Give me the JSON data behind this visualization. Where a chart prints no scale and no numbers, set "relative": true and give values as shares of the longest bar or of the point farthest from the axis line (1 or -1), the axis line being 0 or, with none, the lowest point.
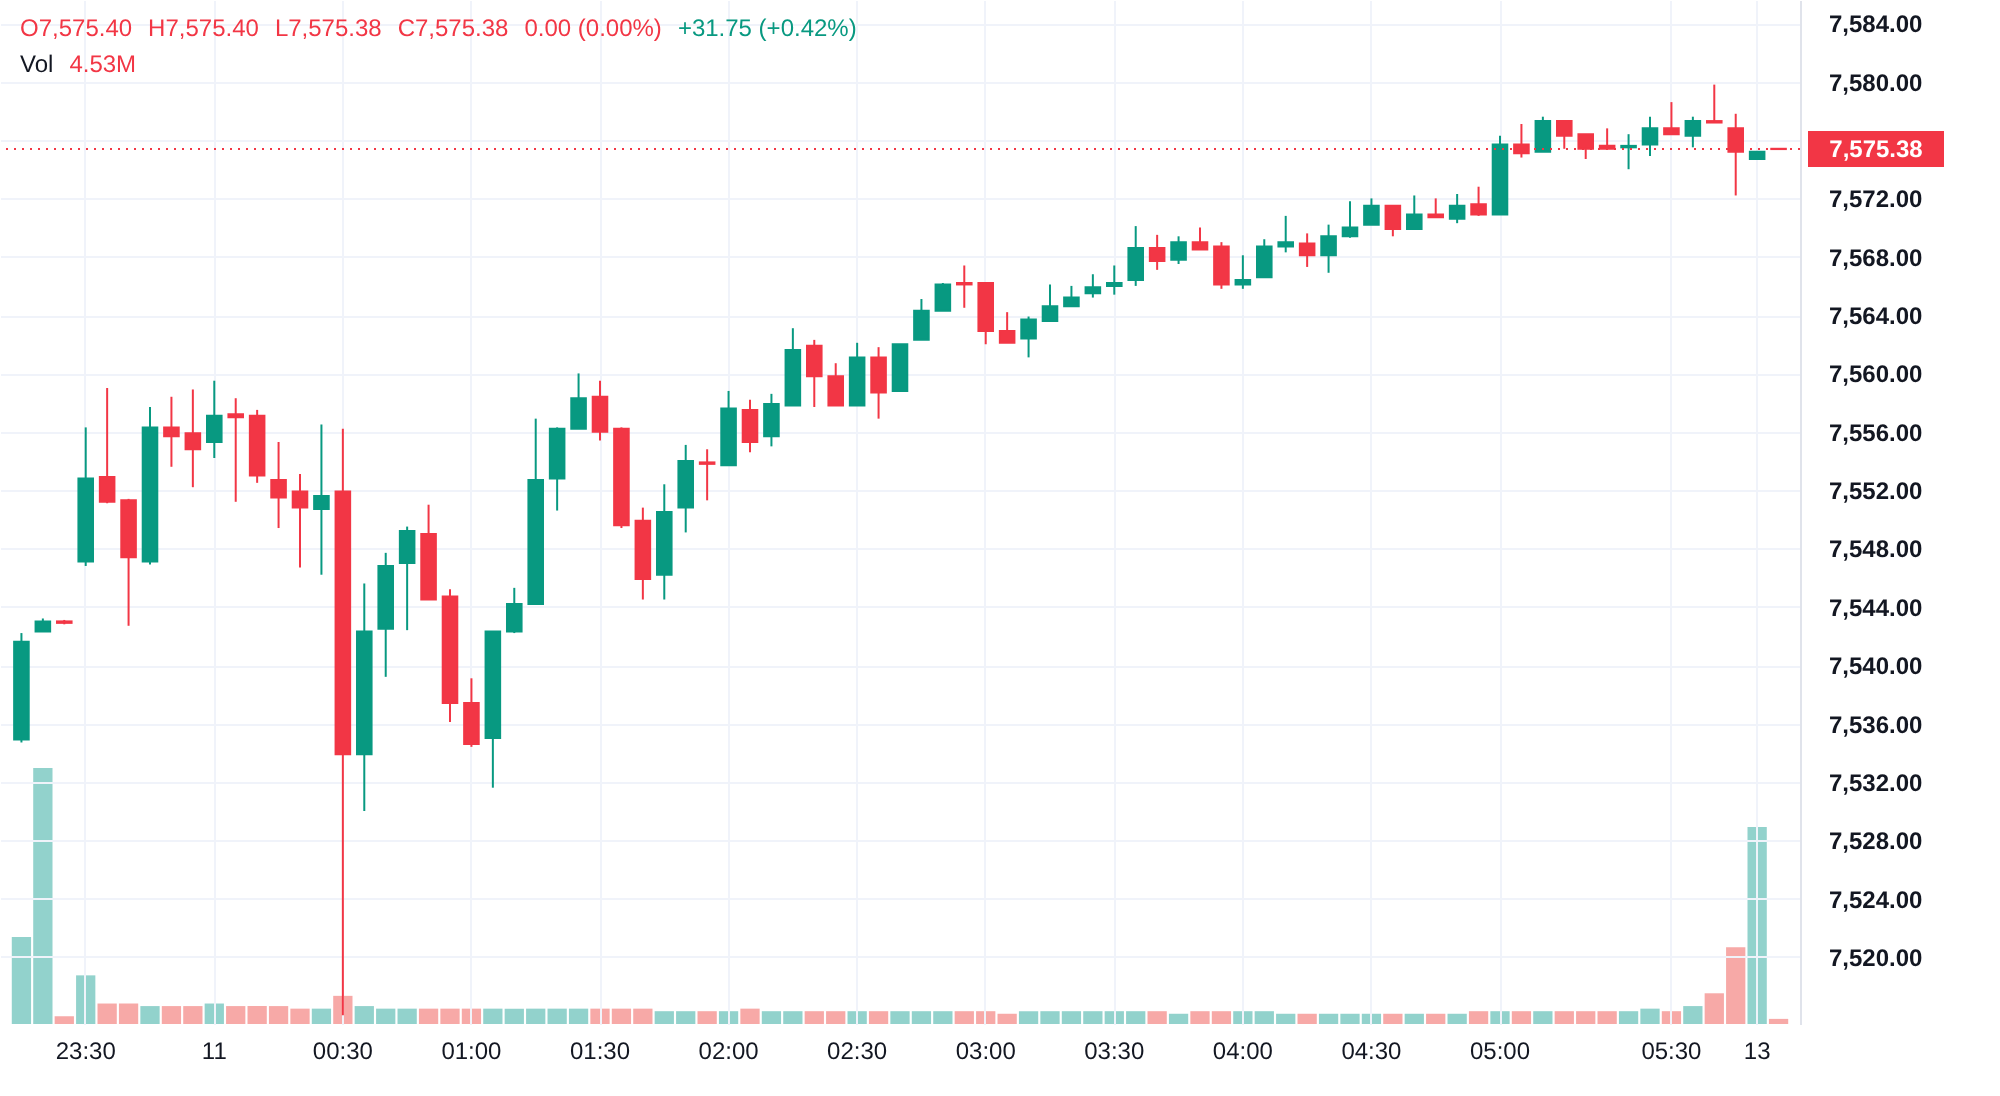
{
  "chart_data": [
    {
      "type": "candlestick",
      "categories": [
        null,
        null,
        null,
        "23:30",
        null,
        null,
        null,
        null,
        null,
        "11",
        null,
        null,
        null,
        null,
        null,
        "00:30",
        null,
        null,
        null,
        null,
        null,
        "01:00",
        null,
        null,
        null,
        null,
        null,
        "01:30",
        null,
        null,
        null,
        null,
        null,
        "02:00",
        null,
        null,
        null,
        null,
        null,
        "02:30",
        null,
        null,
        null,
        null,
        null,
        "03:00",
        null,
        null,
        null,
        null,
        null,
        "03:30",
        null,
        null,
        null,
        null,
        null,
        "04:00",
        null,
        null,
        null,
        null,
        null,
        "04:30",
        null,
        null,
        null,
        null,
        null,
        "05:00",
        null,
        null,
        null,
        null,
        null,
        null,
        null,
        "05:30",
        null,
        null,
        null,
        "13",
        null
      ],
      "series": [
        {
          "ohlc": [
            [
              7534.9,
              7542.2,
              7534.7,
              7541.6
            ],
            [
              7542.3,
              7543.2,
              7542.3,
              7543.0
            ],
            [
              7543.0,
              7543.1,
              7542.8,
              7542.9
            ],
            [
              7547.1,
              7556.3,
              7546.8,
              7552.8
            ],
            [
              7552.9,
              7559.0,
              7551.1,
              7551.2
            ],
            [
              7551.3,
              7551.4,
              7542.7,
              7547.4
            ],
            [
              7547.1,
              7557.7,
              7546.9,
              7556.3
            ],
            [
              7556.3,
              7558.4,
              7553.6,
              7555.7
            ],
            [
              7555.9,
              7558.9,
              7552.2,
              7554.8
            ],
            [
              7555.3,
              7559.5,
              7554.2,
              7557.1
            ],
            [
              7557.2,
              7558.3,
              7551.2,
              7557.0
            ],
            [
              7557.1,
              7557.5,
              7552.5,
              7553.0
            ],
            [
              7552.7,
              7555.3,
              7549.4,
              7551.5
            ],
            [
              7551.9,
              7553.1,
              7546.7,
              7550.8
            ],
            [
              7550.7,
              7556.5,
              7546.2,
              7551.6
            ],
            [
              7551.9,
              7556.2,
              7516.0,
              7533.9
            ],
            [
              7533.9,
              7545.6,
              7530.0,
              7542.3
            ],
            [
              7542.5,
              7547.7,
              7539.2,
              7546.8
            ],
            [
              7547.0,
              7549.5,
              7542.4,
              7549.2
            ],
            [
              7549.0,
              7551.0,
              7544.5,
              7544.5
            ],
            [
              7544.7,
              7545.2,
              7536.1,
              7537.4
            ],
            [
              7537.4,
              7539.1,
              7534.4,
              7534.6
            ],
            [
              7535.0,
              7542.3,
              7531.6,
              7542.3
            ],
            [
              7542.3,
              7545.3,
              7542.2,
              7544.2
            ],
            [
              7544.2,
              7556.9,
              7544.2,
              7552.7
            ],
            [
              7552.8,
              7556.3,
              7550.6,
              7556.2
            ],
            [
              7556.2,
              7560.0,
              7556.2,
              7558.3
            ],
            [
              7558.4,
              7559.5,
              7555.4,
              7556.0
            ],
            [
              7556.2,
              7556.3,
              7549.4,
              7549.6
            ],
            [
              7549.9,
              7550.8,
              7544.5,
              7545.9
            ],
            [
              7546.2,
              7552.4,
              7544.5,
              7550.5
            ],
            [
              7550.8,
              7555.1,
              7549.1,
              7554.0
            ],
            [
              7553.9,
              7554.8,
              7551.3,
              7553.8
            ],
            [
              7553.7,
              7558.8,
              7553.7,
              7557.6
            ],
            [
              7557.5,
              7558.2,
              7554.6,
              7555.3
            ],
            [
              7555.7,
              7558.6,
              7555.0,
              7557.9
            ],
            [
              7557.8,
              7563.1,
              7557.8,
              7561.6
            ],
            [
              7561.9,
              7562.3,
              7557.7,
              7559.8
            ],
            [
              7559.8,
              7560.7,
              7557.8,
              7557.8
            ],
            [
              7557.8,
              7562.1,
              7557.8,
              7561.1
            ],
            [
              7561.1,
              7561.8,
              7556.9,
              7558.7
            ],
            [
              7558.8,
              7562.0,
              7558.8,
              7562.0
            ],
            [
              7562.3,
              7565.1,
              7562.3,
              7564.3
            ],
            [
              7564.3,
              7566.2,
              7564.3,
              7566.1
            ],
            [
              7566.2,
              7567.4,
              7564.5,
              7566.1
            ],
            [
              7566.2,
              7566.2,
              7562.0,
              7562.9
            ],
            [
              7562.9,
              7564.2,
              7562.1,
              7562.1
            ],
            [
              7562.4,
              7563.9,
              7561.1,
              7563.7
            ],
            [
              7563.6,
              7566.1,
              7563.6,
              7564.6
            ],
            [
              7564.6,
              7566.0,
              7564.6,
              7565.2
            ],
            [
              7565.5,
              7566.8,
              7565.2,
              7565.9
            ],
            [
              7566.0,
              7567.4,
              7565.4,
              7566.2
            ],
            [
              7566.4,
              7570.1,
              7566.0,
              7568.6
            ],
            [
              7568.6,
              7569.5,
              7567.1,
              7567.7
            ],
            [
              7567.8,
              7569.4,
              7567.5,
              7569.0
            ],
            [
              7569.0,
              7570.0,
              7568.5,
              7568.5
            ],
            [
              7568.7,
              7569.0,
              7565.8,
              7566.1
            ],
            [
              7566.1,
              7568.1,
              7565.8,
              7566.4
            ],
            [
              7566.6,
              7569.2,
              7566.6,
              7568.7
            ],
            [
              7568.7,
              7570.8,
              7568.3,
              7569.0
            ],
            [
              7568.9,
              7569.6,
              7567.3,
              7568.1
            ],
            [
              7568.1,
              7570.2,
              7566.9,
              7569.4
            ],
            [
              7569.4,
              7571.8,
              7569.3,
              7570.0
            ],
            [
              7570.2,
              7572.0,
              7570.2,
              7571.5
            ],
            [
              7571.5,
              7571.5,
              7569.4,
              7569.9
            ],
            [
              7569.9,
              7572.2,
              7569.9,
              7570.9
            ],
            [
              7570.9,
              7572.0,
              7570.7,
              7570.7
            ],
            [
              7570.6,
              7572.3,
              7570.3,
              7571.5
            ],
            [
              7571.6,
              7572.8,
              7570.8,
              7570.9
            ],
            [
              7570.9,
              7576.3,
              7570.9,
              7575.7
            ],
            [
              7575.7,
              7577.1,
              7574.8,
              7575.1
            ],
            [
              7575.2,
              7577.6,
              7575.2,
              7577.3
            ],
            [
              7577.3,
              7577.3,
              7575.4,
              7576.3
            ],
            [
              7576.4,
              7576.4,
              7574.7,
              7575.4
            ],
            [
              7575.6,
              7576.8,
              7575.4,
              7575.4
            ],
            [
              7575.5,
              7576.4,
              7574.0,
              7575.6
            ],
            [
              7575.7,
              7577.6,
              7574.9,
              7576.8
            ],
            [
              7576.8,
              7578.6,
              7576.4,
              7576.4
            ],
            [
              7576.3,
              7577.6,
              7575.5,
              7577.3
            ],
            [
              7577.3,
              7579.8,
              7577.2,
              7577.2
            ],
            [
              7576.8,
              7577.8,
              7572.2,
              7575.2
            ],
            [
              7574.7,
              7575.2,
              7574.7,
              7575.2
            ],
            [
              7575.4,
              7575.4,
              7575.38,
              7575.38
            ]
          ],
          "colors": [
            "#089981",
            "#089981",
            "#f23645",
            "#089981",
            "#f23645",
            "#f23645",
            "#089981",
            "#f23645",
            "#f23645",
            "#089981",
            "#f23645",
            "#f23645",
            "#f23645",
            "#f23645",
            "#089981",
            "#f23645",
            "#089981",
            "#089981",
            "#089981",
            "#f23645",
            "#f23645",
            "#f23645",
            "#089981",
            "#089981",
            "#089981",
            "#089981",
            "#089981",
            "#f23645",
            "#f23645",
            "#f23645",
            "#089981",
            "#089981",
            "#f23645",
            "#089981",
            "#f23645",
            "#089981",
            "#089981",
            "#f23645",
            "#f23645",
            "#089981",
            "#f23645",
            "#089981",
            "#089981",
            "#089981",
            "#f23645",
            "#f23645",
            "#f23645",
            "#089981",
            "#089981",
            "#089981",
            "#089981",
            "#089981",
            "#089981",
            "#f23645",
            "#089981",
            "#f23645",
            "#f23645",
            "#089981",
            "#089981",
            "#089981",
            "#f23645",
            "#089981",
            "#089981",
            "#089981",
            "#f23645",
            "#089981",
            "#f23645",
            "#089981",
            "#f23645",
            "#089981",
            "#f23645",
            "#089981",
            "#f23645",
            "#f23645",
            "#f23645",
            "#089981",
            "#089981",
            "#f23645",
            "#089981",
            "#f23645",
            "#f23645",
            "#089981",
            "#f23645"
          ]
        }
      ],
      "ylim": [
        7515.4,
        7585.6
      ],
      "yticks": [
        {
          "value": 7520,
          "label": "7,520.00"
        },
        {
          "value": 7524,
          "label": "7,524.00"
        },
        {
          "value": 7528,
          "label": "7,528.00"
        },
        {
          "value": 7532,
          "label": "7,532.00"
        },
        {
          "value": 7536,
          "label": "7,536.00"
        },
        {
          "value": 7540,
          "label": "7,540.00"
        },
        {
          "value": 7544,
          "label": "7,544.00"
        },
        {
          "value": 7548,
          "label": "7,548.00"
        },
        {
          "value": 7552,
          "label": "7,552.00"
        },
        {
          "value": 7556,
          "label": "7,556.00"
        },
        {
          "value": 7560,
          "label": "7,560.00"
        },
        {
          "value": 7564,
          "label": "7,564.00"
        },
        {
          "value": 7568,
          "label": "7,568.00"
        },
        {
          "value": 7572,
          "label": "7,572.00"
        },
        {
          "value": 7576,
          "label": null
        },
        {
          "value": 7580,
          "label": "7,580.00"
        },
        {
          "value": 7584,
          "label": "7,584.00"
        }
      ],
      "grid": true,
      "ref_lines": [
        {
          "axis": "y",
          "value": 7575.38,
          "label": "7,575.38",
          "color": "#f23645",
          "line_style": "dotted"
        }
      ],
      "annotations": [
        "O7,575.40",
        "H7,575.40",
        "L7,575.38",
        "C7,575.38",
        "0.00 (0.00%)",
        "+31.75 (+0.42%)",
        "Vol",
        "4.53M"
      ]
    },
    {
      "type": "bar",
      "relative": true,
      "categories": [
        null,
        null,
        null,
        null,
        null,
        null,
        null,
        null,
        null,
        null,
        null,
        null,
        null,
        null,
        null,
        null,
        null,
        null,
        null,
        null,
        null,
        null,
        null,
        null,
        null,
        null,
        null,
        null,
        null,
        null,
        null,
        null,
        null,
        null,
        null,
        null,
        null,
        null,
        null,
        null,
        null,
        null,
        null,
        null,
        null,
        null,
        null,
        null,
        null,
        null,
        null,
        null,
        null,
        null,
        null,
        null,
        null,
        null,
        null,
        null,
        null,
        null,
        null,
        null,
        null,
        null,
        null,
        null,
        null,
        null,
        null,
        null,
        null,
        null,
        null,
        null,
        null,
        null,
        null,
        null,
        null,
        null,
        null
      ],
      "values": [
        0.34,
        1.0,
        0.03,
        0.19,
        0.08,
        0.08,
        0.07,
        0.07,
        0.07,
        0.08,
        0.07,
        0.07,
        0.07,
        0.06,
        0.06,
        0.11,
        0.07,
        0.06,
        0.06,
        0.06,
        0.06,
        0.06,
        0.06,
        0.06,
        0.06,
        0.06,
        0.06,
        0.06,
        0.06,
        0.06,
        0.05,
        0.05,
        0.05,
        0.05,
        0.06,
        0.05,
        0.05,
        0.05,
        0.05,
        0.05,
        0.05,
        0.05,
        0.05,
        0.05,
        0.05,
        0.05,
        0.04,
        0.05,
        0.05,
        0.05,
        0.05,
        0.05,
        0.05,
        0.05,
        0.04,
        0.05,
        0.05,
        0.05,
        0.05,
        0.04,
        0.04,
        0.04,
        0.04,
        0.04,
        0.04,
        0.04,
        0.04,
        0.04,
        0.05,
        0.05,
        0.05,
        0.05,
        0.05,
        0.05,
        0.05,
        0.05,
        0.06,
        0.05,
        0.07,
        0.12,
        0.3,
        0.77,
        0.02
      ],
      "colors": [
        "#92d2cc",
        "#92d2cc",
        "#f7a9a7",
        "#92d2cc",
        "#f7a9a7",
        "#f7a9a7",
        "#92d2cc",
        "#f7a9a7",
        "#f7a9a7",
        "#92d2cc",
        "#f7a9a7",
        "#f7a9a7",
        "#f7a9a7",
        "#f7a9a7",
        "#92d2cc",
        "#f7a9a7",
        "#92d2cc",
        "#92d2cc",
        "#92d2cc",
        "#f7a9a7",
        "#f7a9a7",
        "#f7a9a7",
        "#92d2cc",
        "#92d2cc",
        "#92d2cc",
        "#92d2cc",
        "#92d2cc",
        "#f7a9a7",
        "#f7a9a7",
        "#f7a9a7",
        "#92d2cc",
        "#92d2cc",
        "#f7a9a7",
        "#92d2cc",
        "#f7a9a7",
        "#92d2cc",
        "#92d2cc",
        "#f7a9a7",
        "#f7a9a7",
        "#92d2cc",
        "#f7a9a7",
        "#92d2cc",
        "#92d2cc",
        "#92d2cc",
        "#f7a9a7",
        "#f7a9a7",
        "#f7a9a7",
        "#92d2cc",
        "#92d2cc",
        "#92d2cc",
        "#92d2cc",
        "#92d2cc",
        "#92d2cc",
        "#f7a9a7",
        "#92d2cc",
        "#f7a9a7",
        "#f7a9a7",
        "#92d2cc",
        "#92d2cc",
        "#92d2cc",
        "#f7a9a7",
        "#92d2cc",
        "#92d2cc",
        "#92d2cc",
        "#f7a9a7",
        "#92d2cc",
        "#f7a9a7",
        "#92d2cc",
        "#f7a9a7",
        "#92d2cc",
        "#f7a9a7",
        "#92d2cc",
        "#f7a9a7",
        "#f7a9a7",
        "#f7a9a7",
        "#92d2cc",
        "#92d2cc",
        "#f7a9a7",
        "#92d2cc",
        "#f7a9a7",
        "#f7a9a7",
        "#92d2cc",
        "#f7a9a7"
      ]
    }
  ]
}
